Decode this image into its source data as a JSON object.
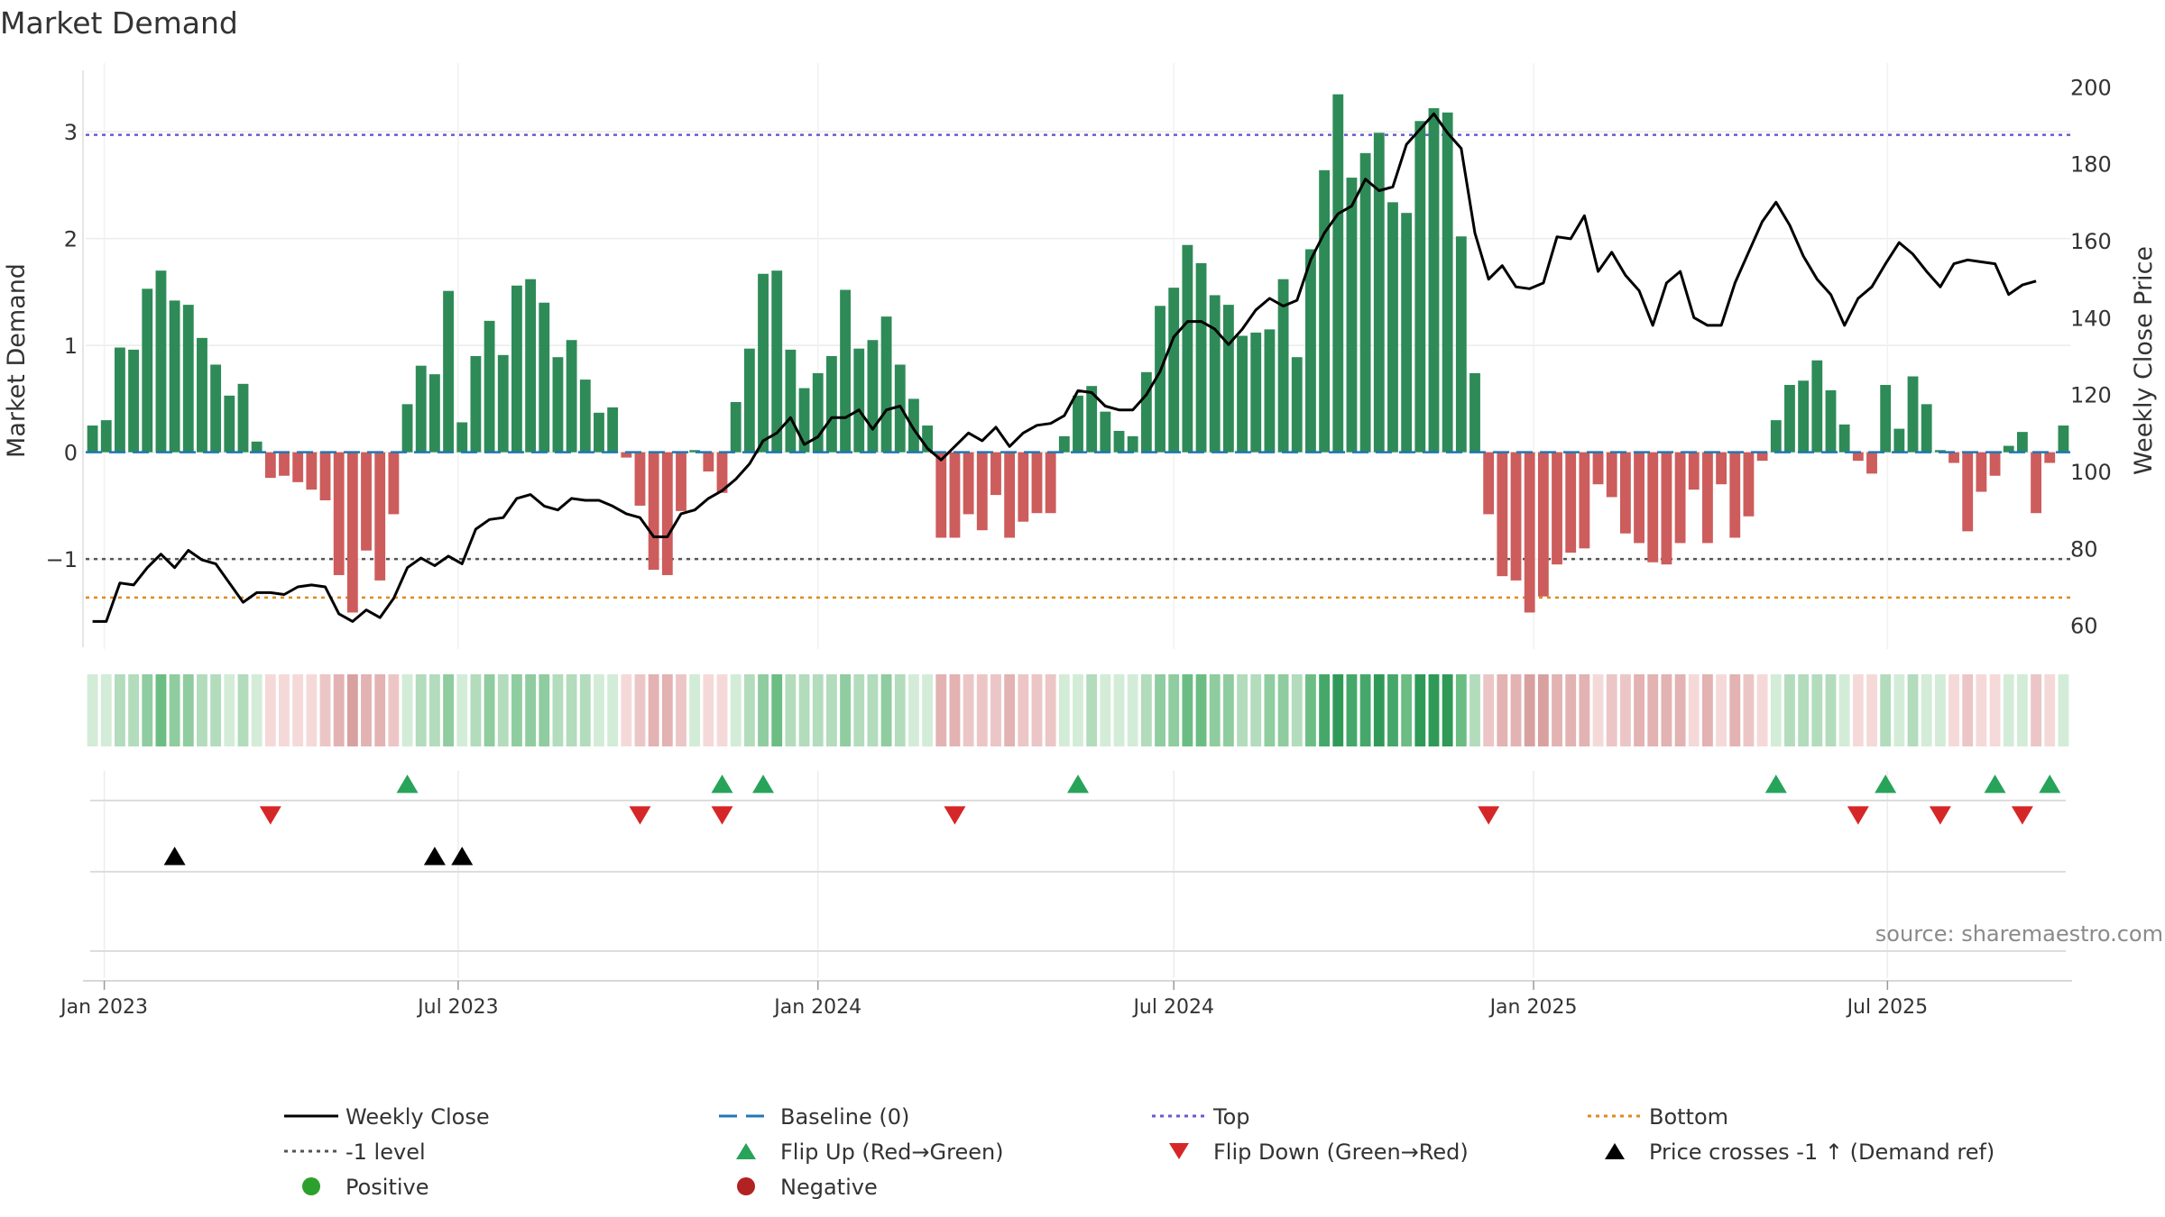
{
  "page": {
    "title": "Market Demand"
  },
  "chart_data": {
    "type": "bar",
    "title": "Market Demand",
    "ylabel_left": "Market Demand",
    "ylabel_right": "Weekly Close Price",
    "ylim_left": [
      -1.8,
      3.6
    ],
    "ylim_right": [
      55,
      205
    ],
    "yticks_left": [
      "−1",
      "0",
      "1",
      "2",
      "3"
    ],
    "yticks_right": [
      "60",
      "80",
      "100",
      "120",
      "140",
      "160",
      "180",
      "200"
    ],
    "xticks": [
      "Jan 2023",
      "Jul 2023",
      "Jan 2024",
      "Jul 2024",
      "Jan 2025",
      "Jul 2025"
    ],
    "start_week": "2022-12-26",
    "reference_lines": {
      "top": 2.97,
      "minus_one": -1.0,
      "bottom": -1.36,
      "baseline": 0
    },
    "demand": [
      0.25,
      0.3,
      0.98,
      0.96,
      1.53,
      1.7,
      1.42,
      1.38,
      1.07,
      0.82,
      0.53,
      0.64,
      0.1,
      -0.24,
      -0.22,
      -0.28,
      -0.35,
      -0.45,
      -1.15,
      -1.5,
      -0.92,
      -1.2,
      -0.58,
      0.45,
      0.81,
      0.73,
      1.51,
      0.28,
      0.9,
      1.23,
      0.91,
      1.56,
      1.62,
      1.4,
      0.89,
      1.05,
      0.68,
      0.37,
      0.42,
      -0.05,
      -0.5,
      -1.1,
      -1.15,
      -0.55,
      0.02,
      -0.18,
      -0.38,
      0.47,
      0.97,
      1.67,
      1.7,
      0.96,
      0.6,
      0.74,
      0.9,
      1.52,
      0.97,
      1.05,
      1.27,
      0.82,
      0.5,
      0.25,
      -0.8,
      -0.8,
      -0.58,
      -0.73,
      -0.4,
      -0.8,
      -0.65,
      -0.57,
      -0.57,
      0.15,
      0.53,
      0.62,
      0.38,
      0.2,
      0.15,
      0.75,
      1.37,
      1.54,
      1.94,
      1.77,
      1.47,
      1.38,
      1.09,
      1.12,
      1.15,
      1.62,
      0.89,
      1.9,
      2.64,
      3.35,
      2.57,
      2.8,
      2.99,
      2.34,
      2.24,
      3.1,
      3.22,
      3.18,
      2.02,
      0.74,
      -0.58,
      -1.16,
      -1.2,
      -1.5,
      -1.35,
      -1.05,
      -0.94,
      -0.9,
      -0.3,
      -0.42,
      -0.76,
      -0.85,
      -1.03,
      -1.05,
      -0.85,
      -0.35,
      -0.85,
      -0.3,
      -0.8,
      -0.6,
      -0.08,
      0.3,
      0.63,
      0.67,
      0.86,
      0.58,
      0.26,
      -0.08,
      -0.2,
      0.63,
      0.22,
      0.71,
      0.45,
      0.02,
      -0.1,
      -0.74,
      -0.37,
      -0.22,
      0.06,
      0.19,
      -0.57,
      -0.1,
      0.25
    ],
    "price": [
      61,
      61,
      71,
      70.5,
      75,
      78.5,
      75,
      79.5,
      77,
      76,
      71,
      66,
      68.5,
      68.5,
      68,
      70,
      70.5,
      70,
      63,
      61,
      64,
      62,
      67,
      75,
      77.5,
      75.5,
      78,
      76,
      85,
      87.5,
      88,
      93,
      94,
      91,
      90,
      93,
      92.5,
      92.5,
      91,
      89,
      88,
      83,
      83,
      89,
      90,
      93,
      95,
      98,
      102,
      108,
      110,
      114,
      107,
      109,
      114,
      114,
      116,
      111,
      116,
      117,
      111,
      106,
      103,
      106.5,
      110,
      108,
      111.5,
      106.5,
      110,
      112,
      112.5,
      114.5,
      121,
      120.5,
      117,
      116,
      116,
      120,
      126,
      135,
      139,
      139,
      137,
      133,
      137,
      142,
      145,
      143,
      144.5,
      155,
      162,
      167,
      169,
      176,
      173,
      174,
      185,
      189,
      193,
      188,
      184,
      162,
      150,
      153.5,
      148,
      147.5,
      149,
      161,
      160.5,
      166.5,
      152,
      157,
      151,
      147,
      138,
      149,
      152,
      140,
      138,
      138,
      149,
      157,
      165,
      170,
      164,
      156,
      150,
      146,
      138,
      145,
      148,
      154,
      159.5,
      156.5,
      152,
      148,
      154,
      155,
      154.5,
      154,
      146,
      148.5,
      149.5
    ],
    "bars": {
      "positive_color": "#2e8b57",
      "negative_color": "#cd5c5c"
    },
    "strip": {
      "description_lane": "demand intensity heat strip",
      "green_colors": [
        "#d3ecd8",
        "#b2dcbc",
        "#8fcc9f",
        "#6bbd84",
        "#45a86a",
        "#2f9a57"
      ],
      "red_colors": [
        "#f5d9d9",
        "#ecc6c6",
        "#e3b2b2",
        "#d9a0a0"
      ]
    },
    "flip_up_weeks": [
      23,
      46,
      49,
      72,
      123,
      131,
      139,
      143
    ],
    "flip_down_weeks": [
      13,
      40,
      46,
      63,
      102,
      129,
      135,
      141
    ],
    "price_cross_weeks": [
      6,
      25,
      27
    ],
    "source": "source: sharemaestro.com",
    "colors": {
      "price_line": "#000000",
      "baseline": "#1f77b4",
      "top": "#6a5acd",
      "minus_one": "#555555",
      "bottom": "#e08a1e",
      "flip_up": "#27a35a",
      "flip_down": "#d62728",
      "cross": "#000000",
      "positive_dot": "#2ca02c",
      "negative_dot": "#b22222"
    },
    "legend": [
      {
        "label": "Weekly Close",
        "type": "solid-line",
        "color": "#000000"
      },
      {
        "label": "Baseline (0)",
        "type": "long-dash",
        "color": "#1f77b4"
      },
      {
        "label": "Top",
        "type": "dotted",
        "color": "#6a5acd"
      },
      {
        "label": "Bottom",
        "type": "dotted",
        "color": "#e08a1e"
      },
      {
        "label": "-1 level",
        "type": "dotted",
        "color": "#555555"
      },
      {
        "label": "Flip Up (Red→Green)",
        "type": "triangle-up",
        "color": "#27a35a"
      },
      {
        "label": "Flip Down (Green→Red)",
        "type": "triangle-down",
        "color": "#d62728"
      },
      {
        "label": "Price crosses -1 ↑ (Demand ref)",
        "type": "triangle-up",
        "color": "#000000"
      },
      {
        "label": "Positive",
        "type": "dot",
        "color": "#2ca02c"
      },
      {
        "label": "Negative",
        "type": "dot",
        "color": "#b22222"
      }
    ]
  }
}
